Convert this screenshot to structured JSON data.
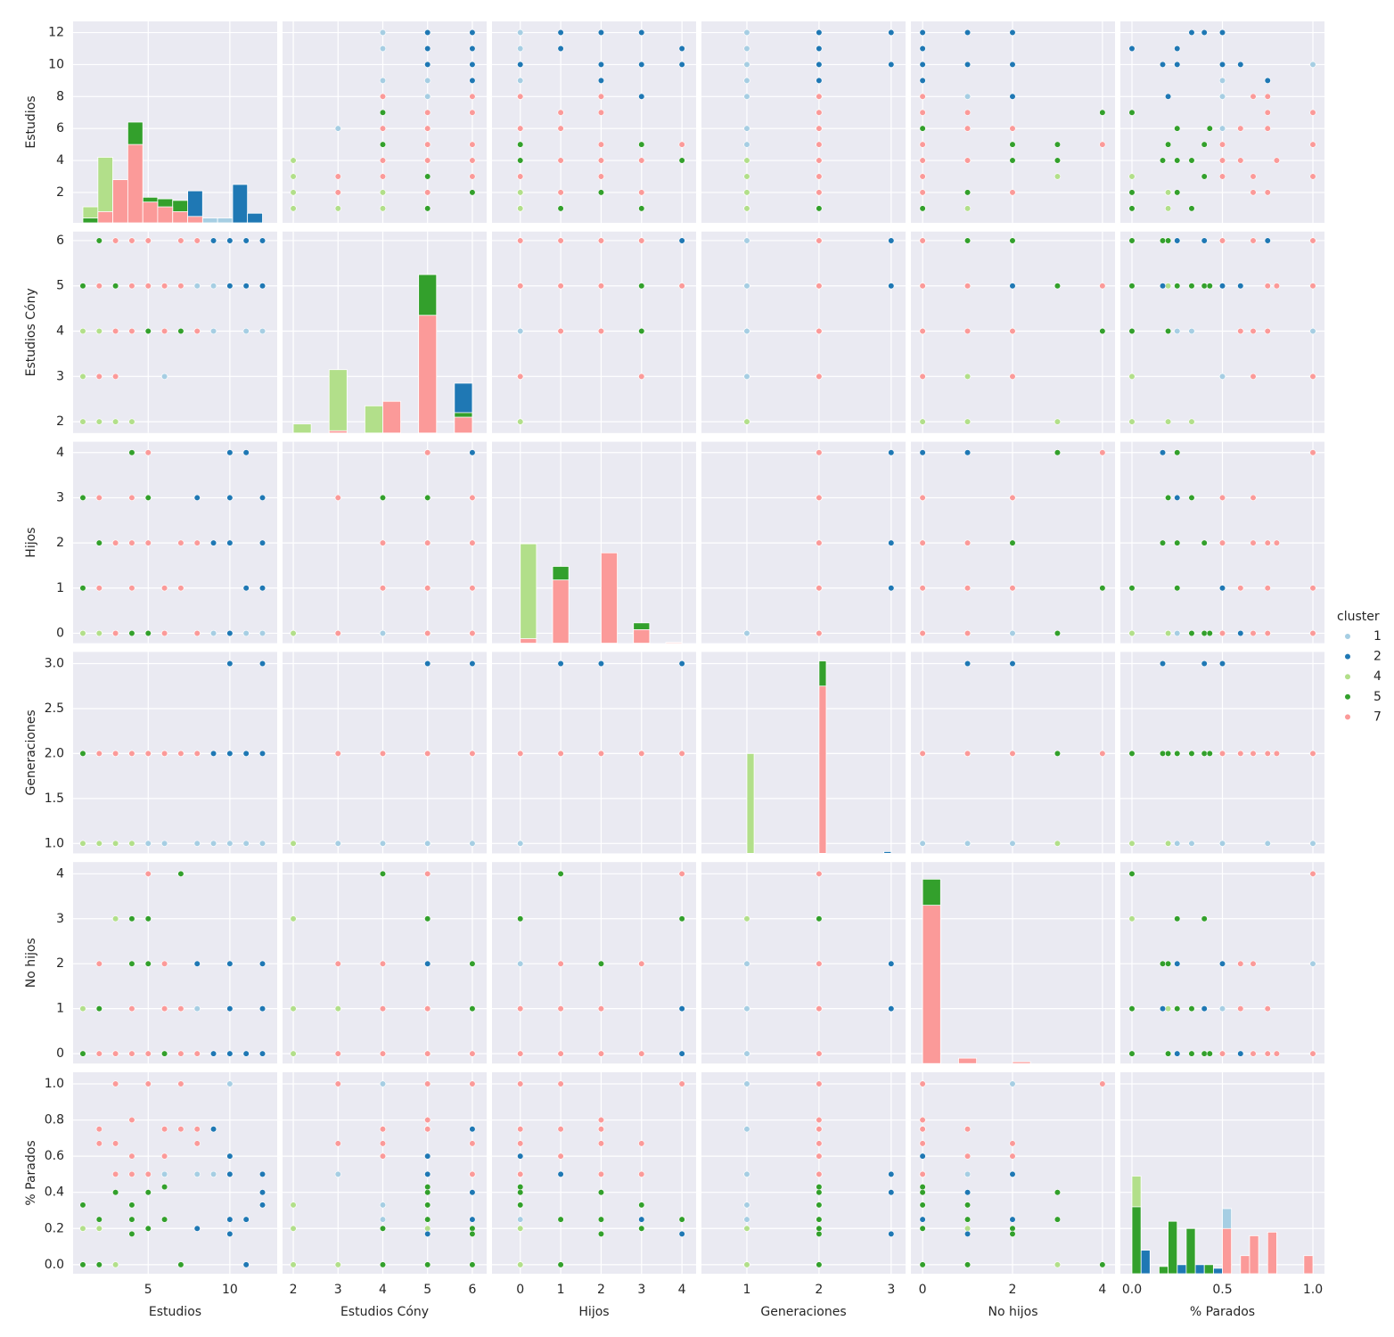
{
  "chart_data": {
    "type": "pairplot",
    "legend_title": "cluster",
    "clusters": [
      {
        "name": "1",
        "color": "#a6cee3"
      },
      {
        "name": "2",
        "color": "#1f78b4"
      },
      {
        "name": "4",
        "color": "#b2df8a"
      },
      {
        "name": "5",
        "color": "#33a02c"
      },
      {
        "name": "7",
        "color": "#fb9a99"
      }
    ],
    "variables": [
      {
        "name": "Estudios",
        "xlim": [
          0.4,
          12.9
        ],
        "xticks": [
          5,
          10
        ],
        "ylim": [
          0.1,
          12.7
        ],
        "yticks": [
          2,
          4,
          6,
          8,
          10,
          12
        ],
        "hist_bins": [
          1,
          1.92,
          2.83,
          3.75,
          4.67,
          5.58,
          6.5,
          7.42,
          8.33,
          9.25,
          10.17,
          11.08,
          12
        ],
        "hist_counts": [
          [
            0,
            0,
            0,
            2.1,
            0,
            0,
            0,
            0,
            0.3,
            0.3,
            0.3,
            0
          ],
          [
            0.3,
            0,
            0,
            0,
            0,
            0,
            0,
            2.0,
            0,
            0,
            2.4,
            0.6
          ],
          [
            1.0,
            4.1,
            0,
            0,
            0,
            0,
            0,
            0,
            0,
            0,
            0,
            0
          ],
          [
            0.3,
            0,
            1.8,
            6.3,
            1.6,
            1.5,
            1.4,
            0,
            0,
            0,
            0,
            0
          ],
          [
            0,
            0.7,
            2.7,
            4.9,
            1.3,
            1.0,
            0.7,
            0.4,
            0,
            0,
            0,
            0
          ]
        ]
      },
      {
        "name": "Estudios Cóny",
        "xlim": [
          1.76,
          6.32
        ],
        "xticks": [
          2,
          3,
          4,
          5,
          6
        ],
        "ylim": [
          1.75,
          6.2
        ],
        "yticks": [
          2,
          3,
          4,
          5,
          6
        ],
        "hist_bins": [
          2,
          2.4,
          2.8,
          3.2,
          3.6,
          4,
          4.4,
          4.8,
          5.2,
          5.6,
          6
        ],
        "hist_counts": [
          [
            0,
            0,
            0,
            0,
            0,
            0,
            0,
            0,
            0,
            0
          ],
          [
            0,
            0,
            0,
            0,
            0,
            0,
            0,
            0,
            0,
            1.1
          ],
          [
            0.2,
            0,
            1.4,
            0,
            0.6,
            0,
            0,
            0,
            0,
            0
          ],
          [
            0,
            0,
            0,
            0,
            0,
            0,
            0,
            3.5,
            0,
            0.45
          ],
          [
            0,
            0,
            0.05,
            0,
            0,
            0.7,
            0,
            2.6,
            0,
            0.35
          ]
        ]
      },
      {
        "name": "Hijos",
        "xlim": [
          -0.7,
          4.35
        ],
        "xticks": [
          0,
          1,
          2,
          3,
          4
        ],
        "ylim": [
          -0.22,
          4.24
        ],
        "yticks": [
          0,
          1,
          2,
          3,
          4
        ],
        "hist_bins": [
          0,
          0.4,
          0.8,
          1.2,
          1.6,
          2,
          2.4,
          2.8,
          3.2,
          3.6,
          4
        ],
        "hist_counts": [
          [
            0,
            0,
            0,
            0,
            0,
            0,
            0,
            0,
            0,
            0
          ],
          [
            0,
            0,
            0,
            0,
            0,
            0,
            0,
            0,
            0,
            0
          ],
          [
            2.2,
            0,
            0,
            0,
            0,
            0,
            0,
            0,
            0,
            0
          ],
          [
            0,
            0,
            1.7,
            0,
            0,
            0,
            0,
            0.45,
            0,
            0
          ],
          [
            0.1,
            0,
            1.4,
            0,
            0,
            2.0,
            0,
            0.3,
            0,
            0.02
          ]
        ]
      },
      {
        "name": "Generaciones",
        "xlim": [
          0.37,
          3.2
        ],
        "xticks": [
          1,
          2,
          3
        ],
        "ylim": [
          0.89,
          3.13
        ],
        "yticks": [
          {
            "value": 1,
            "label": "1.0"
          },
          {
            "value": 1.5,
            "label": "1.5"
          },
          {
            "value": 2,
            "label": "2.0"
          },
          {
            "value": 2.5,
            "label": "2.5"
          },
          {
            "value": 3,
            "label": "3.0"
          }
        ],
        "hist_bins": [
          1,
          1.1,
          2,
          2.1,
          2.9,
          3
        ],
        "hist_counts": [
          [
            0,
            0,
            0,
            0,
            0
          ],
          [
            0,
            0,
            0,
            0,
            0.02
          ],
          [
            1.11,
            0,
            0,
            0,
            0
          ],
          [
            0,
            0,
            2.14,
            0,
            0
          ],
          [
            0,
            0,
            1.86,
            0,
            0
          ]
        ]
      },
      {
        "name": "No hijos",
        "xlim": [
          -0.26,
          4.28
        ],
        "xticks": [
          0,
          2,
          4
        ],
        "ylim": [
          -0.22,
          4.26
        ],
        "yticks": [
          0,
          1,
          2,
          3,
          4
        ],
        "hist_bins": [
          0,
          0.4,
          0.8,
          1.2,
          1.6,
          2,
          2.4,
          2.8,
          3.2,
          3.6,
          4
        ],
        "hist_counts": [
          [
            0,
            0,
            0,
            0,
            0,
            0,
            0,
            0,
            0,
            0
          ],
          [
            0,
            0,
            0,
            0,
            0,
            0,
            0,
            0,
            0,
            0
          ],
          [
            0,
            0,
            0,
            0,
            0,
            0,
            0,
            0,
            0,
            0
          ],
          [
            4.1,
            0,
            0,
            0,
            0,
            0,
            0,
            0,
            0,
            0
          ],
          [
            3.52,
            0,
            0.12,
            0,
            0,
            0.04,
            0,
            0,
            0,
            0
          ]
        ]
      },
      {
        "name": "% Parados",
        "xlim": [
          -0.064,
          1.064
        ],
        "xticks": [
          {
            "value": 0,
            "label": "0.0"
          },
          {
            "value": 0.5,
            "label": "0.5"
          },
          {
            "value": 1,
            "label": "1.0"
          }
        ],
        "ylim": [
          -0.05,
          1.064
        ],
        "yticks": [
          {
            "value": 0,
            "label": "0.0"
          },
          {
            "value": 0.2,
            "label": "0.2"
          },
          {
            "value": 0.4,
            "label": "0.4"
          },
          {
            "value": 0.6,
            "label": "0.6"
          },
          {
            "value": 0.8,
            "label": "0.8"
          },
          {
            "value": 1,
            "label": "1.0"
          }
        ],
        "hist_bins": [
          0,
          0.05,
          0.1,
          0.15,
          0.2,
          0.25,
          0.3,
          0.35,
          0.4,
          0.45,
          0.5,
          0.55,
          0.6,
          0.65,
          0.7,
          0.75,
          0.8,
          0.85,
          0.9,
          0.95,
          1
        ],
        "hist_counts": [
          [
            0,
            0,
            0,
            0,
            0,
            0,
            0,
            0,
            0,
            0,
            0.36,
            0,
            0,
            0,
            0,
            0,
            0,
            0,
            0,
            0
          ],
          [
            0,
            0.13,
            0,
            0.02,
            0,
            0.05,
            0,
            0.05,
            0,
            0.03,
            0,
            0,
            0,
            0,
            0,
            0.01,
            0,
            0,
            0,
            0
          ],
          [
            0.54,
            0,
            0,
            0,
            0,
            0,
            0,
            0,
            0,
            0,
            0,
            0,
            0,
            0,
            0,
            0,
            0,
            0,
            0,
            0
          ],
          [
            0.37,
            0,
            0,
            0.04,
            0.29,
            0,
            0.25,
            0,
            0.05,
            0,
            0,
            0,
            0,
            0,
            0,
            0,
            0,
            0,
            0,
            0
          ],
          [
            0,
            0,
            0,
            0,
            0,
            0,
            0,
            0,
            0,
            0,
            0.25,
            0,
            0.1,
            0.21,
            0,
            0.23,
            0,
            0,
            0,
            0.1
          ]
        ]
      }
    ],
    "rows": [
      [
        "4",
        1,
        2,
        0,
        1,
        0,
        0
      ],
      [
        "4",
        2,
        2,
        0,
        1,
        1,
        0.2
      ],
      [
        "4",
        3,
        2,
        0,
        1,
        3,
        0
      ],
      [
        "4",
        4,
        2,
        0,
        1,
        0,
        0.33
      ],
      [
        "4",
        1,
        3,
        0,
        1,
        1,
        0
      ],
      [
        "4",
        2,
        4,
        0,
        1,
        0,
        0.2
      ],
      [
        "4",
        1,
        4,
        0,
        1,
        0,
        0
      ],
      [
        "4",
        1,
        5,
        0,
        1,
        0,
        0.2
      ],
      [
        "1",
        6,
        3,
        0,
        1,
        0,
        0.5
      ],
      [
        "1",
        9,
        5,
        0,
        1,
        0,
        0.5
      ],
      [
        "1",
        11,
        4,
        0,
        1,
        0,
        0.25
      ],
      [
        "1",
        9,
        4,
        0,
        1,
        0,
        0.75
      ],
      [
        "1",
        10,
        6,
        0,
        1,
        0,
        1
      ],
      [
        "1",
        12,
        4,
        0,
        1,
        0,
        0.33
      ],
      [
        "1",
        8,
        5,
        0,
        1,
        1,
        0.5
      ],
      [
        "1",
        5,
        4,
        0,
        1,
        2,
        1
      ],
      [
        "2",
        10,
        5,
        4,
        3,
        1,
        0.17
      ],
      [
        "2",
        12,
        6,
        2,
        3,
        1,
        0.4
      ],
      [
        "2",
        11,
        6,
        4,
        2,
        0,
        0.25
      ],
      [
        "2",
        8,
        4,
        3,
        2,
        2,
        0.2
      ],
      [
        "2",
        10,
        6,
        2,
        2,
        0,
        0.5
      ],
      [
        "2",
        12,
        5,
        1,
        3,
        2,
        0.5
      ],
      [
        "2",
        9,
        6,
        2,
        2,
        0,
        0.75
      ],
      [
        "2",
        10,
        5,
        0,
        2,
        0,
        0.6
      ],
      [
        "2",
        12,
        5,
        3,
        2,
        0,
        0.33
      ],
      [
        "2",
        11,
        5,
        1,
        2,
        0,
        0
      ],
      [
        "2",
        10,
        6,
        3,
        2,
        2,
        0.25
      ],
      [
        "5",
        1,
        5,
        3,
        2,
        0,
        0.33
      ],
      [
        "5",
        2,
        6,
        1,
        2,
        1,
        0
      ],
      [
        "5",
        4,
        5,
        4,
        2,
        3,
        0.25
      ],
      [
        "5",
        5,
        5,
        0,
        2,
        3,
        0.4
      ],
      [
        "5",
        5,
        6,
        3,
        2,
        2,
        0.2
      ],
      [
        "5",
        7,
        4,
        1,
        2,
        4,
        0
      ],
      [
        "5",
        6,
        5,
        1,
        2,
        1,
        0.25
      ],
      [
        "5",
        3,
        5,
        2,
        2,
        0,
        0.4
      ],
      [
        "5",
        4,
        6,
        2,
        2,
        2,
        0.17
      ],
      [
        "5",
        1,
        5,
        1,
        2,
        0,
        0
      ],
      [
        "5",
        2,
        5,
        2,
        2,
        1,
        0.25
      ],
      [
        "5",
        6,
        5,
        0,
        2,
        0,
        0.43
      ],
      [
        "5",
        5,
        4,
        3,
        2,
        0,
        0.2
      ],
      [
        "5",
        4,
        5,
        0,
        2,
        1,
        0.33
      ],
      [
        "7",
        2,
        5,
        1,
        2,
        0,
        0.75
      ],
      [
        "7",
        3,
        4,
        2,
        2,
        0,
        0.67
      ],
      [
        "7",
        4,
        6,
        3,
        2,
        0,
        0.5
      ],
      [
        "7",
        5,
        5,
        4,
        2,
        4,
        1
      ],
      [
        "7",
        3,
        3,
        0,
        2,
        0,
        1
      ],
      [
        "7",
        6,
        4,
        1,
        2,
        2,
        0.6
      ],
      [
        "7",
        7,
        5,
        2,
        2,
        1,
        0.75
      ],
      [
        "7",
        8,
        6,
        0,
        2,
        0,
        0.67
      ],
      [
        "7",
        4,
        4,
        1,
        2,
        1,
        0.6
      ],
      [
        "7",
        5,
        6,
        2,
        2,
        0,
        0.5
      ],
      [
        "7",
        2,
        3,
        3,
        2,
        2,
        0.67
      ],
      [
        "7",
        6,
        5,
        0,
        2,
        1,
        0.75
      ],
      [
        "7",
        7,
        6,
        1,
        2,
        0,
        1
      ],
      [
        "7",
        4,
        5,
        2,
        2,
        0,
        0.8
      ],
      [
        "7",
        3,
        6,
        0,
        2,
        0,
        0.5
      ],
      [
        "7",
        8,
        4,
        2,
        2,
        0,
        0.75
      ]
    ],
    "grid": true
  }
}
